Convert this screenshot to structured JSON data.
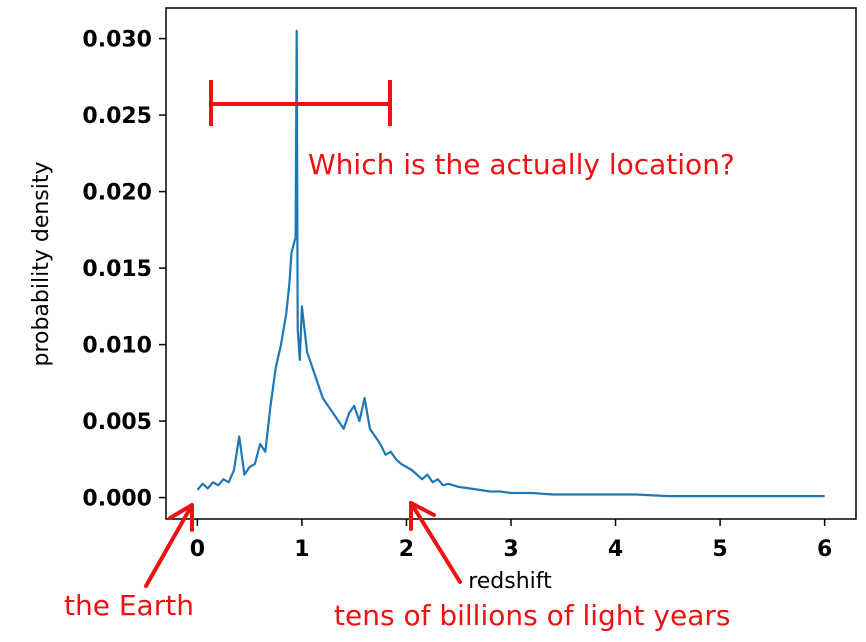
{
  "chart_data": {
    "type": "line",
    "title": "",
    "xlabel": "redshift",
    "ylabel": "probability density",
    "xlim": [
      -0.3,
      6.3
    ],
    "ylim": [
      -0.0014,
      0.032
    ],
    "x_ticks": [
      0,
      1,
      2,
      3,
      4,
      5,
      6
    ],
    "x_tick_labels": [
      "0",
      "1",
      "2",
      "3",
      "4",
      "5",
      "6"
    ],
    "y_ticks": [
      0.0,
      0.005,
      0.01,
      0.015,
      0.02,
      0.025,
      0.03
    ],
    "y_tick_labels": [
      "0.000",
      "0.005",
      "0.010",
      "0.015",
      "0.020",
      "0.025",
      "0.030"
    ],
    "grid": false,
    "series": [
      {
        "color": "#1f77b4",
        "x": [
          0.0,
          0.05,
          0.1,
          0.15,
          0.2,
          0.25,
          0.3,
          0.35,
          0.4,
          0.45,
          0.5,
          0.55,
          0.6,
          0.65,
          0.7,
          0.75,
          0.8,
          0.85,
          0.88,
          0.9,
          0.92,
          0.94,
          0.95,
          0.96,
          0.98,
          1.0,
          1.05,
          1.1,
          1.15,
          1.2,
          1.25,
          1.3,
          1.35,
          1.4,
          1.45,
          1.5,
          1.55,
          1.6,
          1.65,
          1.7,
          1.75,
          1.8,
          1.85,
          1.9,
          1.95,
          2.0,
          2.05,
          2.1,
          2.15,
          2.2,
          2.25,
          2.3,
          2.35,
          2.4,
          2.5,
          2.6,
          2.7,
          2.8,
          2.9,
          3.0,
          3.2,
          3.4,
          3.6,
          3.8,
          4.0,
          4.2,
          4.5,
          5.0,
          5.5,
          6.0
        ],
        "y": [
          0.0005,
          0.0009,
          0.0006,
          0.001,
          0.0008,
          0.0012,
          0.001,
          0.0018,
          0.004,
          0.0015,
          0.002,
          0.0022,
          0.0035,
          0.003,
          0.006,
          0.0085,
          0.01,
          0.012,
          0.014,
          0.016,
          0.0165,
          0.017,
          0.0305,
          0.011,
          0.009,
          0.0125,
          0.0095,
          0.0085,
          0.0075,
          0.0065,
          0.006,
          0.0055,
          0.005,
          0.0045,
          0.0055,
          0.006,
          0.005,
          0.0065,
          0.0045,
          0.004,
          0.0035,
          0.0028,
          0.003,
          0.0025,
          0.0022,
          0.002,
          0.0018,
          0.0015,
          0.0012,
          0.0015,
          0.001,
          0.0012,
          0.0008,
          0.0009,
          0.0007,
          0.0006,
          0.0005,
          0.0004,
          0.0004,
          0.0003,
          0.0003,
          0.0002,
          0.0002,
          0.0002,
          0.0002,
          0.0002,
          0.0001,
          0.0001,
          0.0001,
          0.0001
        ]
      }
    ]
  },
  "annotations": {
    "question": "Which is the actually location?",
    "earth": "the Earth",
    "far": "tens of billions of light years",
    "color": "#ee1111"
  }
}
